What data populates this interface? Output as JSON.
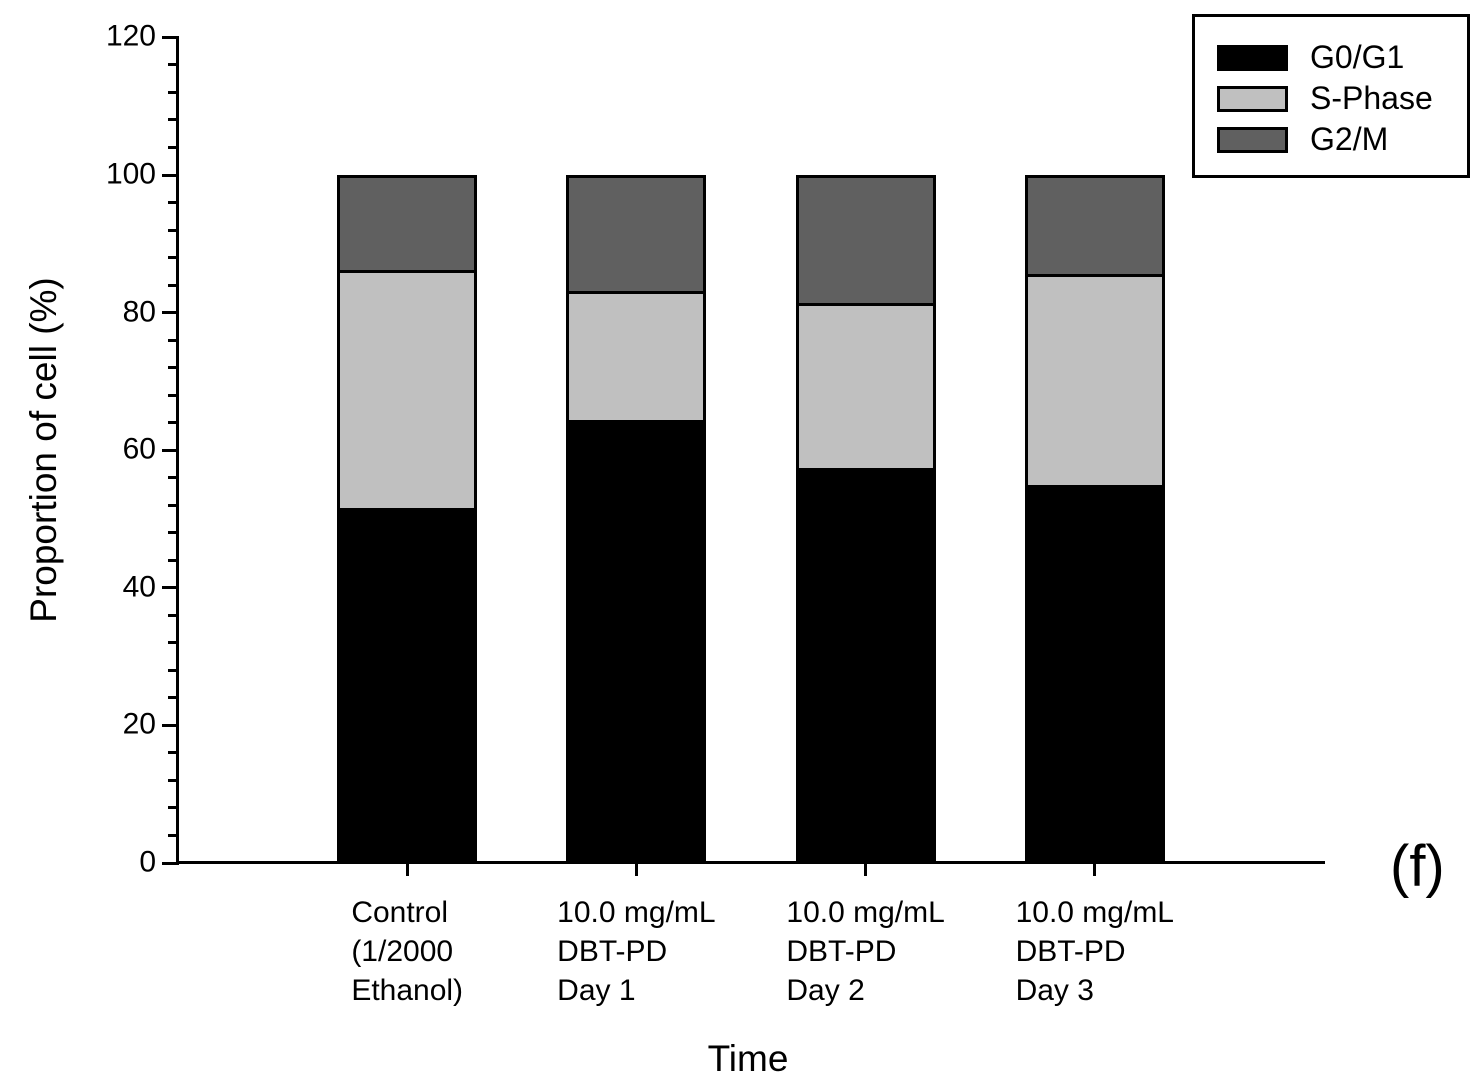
{
  "annotation": {
    "label": "(f)"
  },
  "chart_data": {
    "type": "bar",
    "stacked": true,
    "title": "",
    "xlabel": "Time",
    "ylabel": "Proportion of cell (%)",
    "ylim": [
      0,
      120
    ],
    "yticks": [
      0,
      20,
      40,
      60,
      80,
      100,
      120
    ],
    "minor_tick_step": 4,
    "grid": false,
    "legend_position": "top-right",
    "bar_outline_color": "#000000",
    "categories": [
      {
        "lines": [
          "Control",
          "(1/2000",
          "Ethanol)"
        ]
      },
      {
        "lines": [
          "10.0 mg/mL",
          "DBT-PD",
          "Day 1"
        ]
      },
      {
        "lines": [
          "10.0 mg/mL",
          "DBT-PD",
          "Day 2"
        ]
      },
      {
        "lines": [
          "10.0 mg/mL",
          "DBT-PD",
          "Day 3"
        ]
      }
    ],
    "series": [
      {
        "name": "G0/G1",
        "color": "#000000",
        "values": [
          51.6,
          64.4,
          57.4,
          55.0
        ]
      },
      {
        "name": "S-Phase",
        "color": "#c0c0c0",
        "values": [
          34.6,
          18.7,
          24.0,
          30.6
        ]
      },
      {
        "name": "G2/M",
        "color": "#606060",
        "values": [
          13.8,
          16.9,
          18.6,
          14.4
        ]
      }
    ]
  }
}
